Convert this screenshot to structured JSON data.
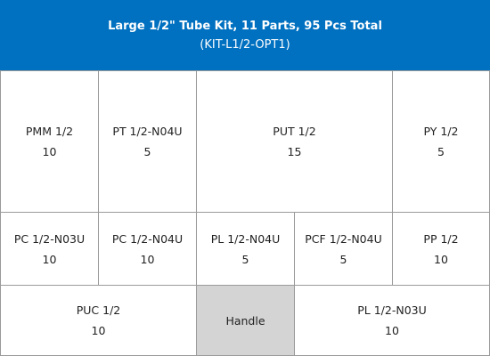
{
  "header": {
    "title": "Large 1/2\" Tube Kit, 11 Parts, 95 Pcs Total",
    "subtitle": "(KIT-L1/2-OPT1)"
  },
  "rows": [
    [
      {
        "label": "PMM 1/2",
        "qty": 10
      },
      {
        "label": "PT 1/2-N04U",
        "qty": 5
      },
      {
        "label": "PUT 1/2",
        "qty": 15
      },
      {
        "label": "PY 1/2",
        "qty": 5
      }
    ],
    [
      {
        "label": "PC 1/2-N03U",
        "qty": 10
      },
      {
        "label": "PC 1/2-N04U",
        "qty": 10
      },
      {
        "label": "PL 1/2-N04U",
        "qty": 5
      },
      {
        "label": "PCF 1/2-N04U",
        "qty": 5
      },
      {
        "label": "PP 1/2",
        "qty": 10
      }
    ],
    [
      {
        "label": "PUC 1/2",
        "qty": 10
      },
      {
        "label": "Handle"
      },
      {
        "label": "PL 1/2-N03U",
        "qty": 10
      }
    ]
  ]
}
